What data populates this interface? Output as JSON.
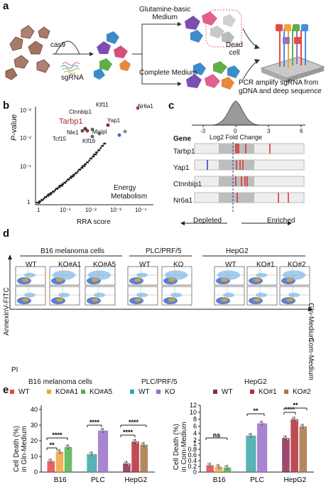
{
  "panel_a": {
    "label": "a",
    "cas9": "cas9",
    "sgrna": "sgRNA",
    "glutamine_medium": "Glutamine-basic\nMedium",
    "complete_medium": "Complete Medium",
    "dead_cell": "Dead\ncell",
    "pcr_text": "PCR amplify sgRNA from\ngDNA and deep sequence"
  },
  "panel_b": {
    "label": "b",
    "ylabel_italic": "P",
    "ylabel_rest": "-value",
    "xlabel": "RRA score",
    "annotation_line1": "Energy",
    "annotation_line2": "Metabolism",
    "highlight_gene": "Tarbp1",
    "genes": [
      "Klf11",
      "Nr6a1",
      "Ctnnbip1",
      "Yap1",
      "Nle1",
      "Mixipl",
      "Tcf15",
      "Klf16"
    ],
    "x_ticks": [
      "1",
      "10⁻¹",
      "10⁻²",
      "10⁻³",
      "10⁻⁴"
    ],
    "y_ticks": [
      "10⁻³",
      "10⁻²",
      "10⁻¹",
      "1"
    ]
  },
  "panel_c": {
    "label": "c",
    "gene_header": "Gene",
    "genes": [
      "Tarbp1",
      "Yap1",
      "Ctnnbip1",
      "Nr6a1"
    ],
    "x_ticks": [
      "-3",
      "0",
      "3",
      "6"
    ],
    "xlabel": "Log2 Fold Change",
    "depleted": "Depleted",
    "enriched": "Enriched"
  },
  "panel_d": {
    "label": "d",
    "groups": [
      "B16 melanoma cells",
      "PLC/PRF/5",
      "HepG2"
    ],
    "columns": [
      "WT",
      "KO#A1",
      "KO#A5",
      "WT",
      "KO",
      "WT",
      "KO#1",
      "KO#2"
    ],
    "row_labels": [
      "Gln-Medium",
      "Com-Medium"
    ],
    "ylabel": "AnnexinV-FITC",
    "xlabel": "PI"
  },
  "panel_e": {
    "label": "e",
    "legend_groups": [
      {
        "title": "B16 melanoma cells",
        "items": [
          {
            "name": "WT",
            "color": "#e8434c"
          },
          {
            "name": "KO#A1",
            "color": "#f0a43a"
          },
          {
            "name": "KO#A5",
            "color": "#53b04c"
          }
        ]
      },
      {
        "title": "PLC/PRF/5",
        "items": [
          {
            "name": "WT",
            "color": "#3aa6a8"
          },
          {
            "name": "KO",
            "color": "#9a6fc8"
          }
        ]
      },
      {
        "title": "HepG2",
        "items": [
          {
            "name": "WT",
            "color": "#8a2a55"
          },
          {
            "name": "KO#1",
            "color": "#b32d3a"
          },
          {
            "name": "KO#2",
            "color": "#a87443"
          }
        ]
      }
    ],
    "ylabel_left": "Cell Death (%)\nin Gln-Medium",
    "ylabel_right": "Cell Death (%)\nin Com-Medium",
    "ns": "ns"
  },
  "chart_data": [
    {
      "type": "bar",
      "title": "",
      "ylabel": "Cell Death (%) in Gln-Medium",
      "ylim": [
        0,
        40
      ],
      "y_ticks": [
        0,
        10,
        20,
        30,
        40
      ],
      "categories": [
        "B16",
        "PLC",
        "HepG2"
      ],
      "groups": [
        {
          "category": "B16",
          "bars": [
            {
              "name": "WT",
              "value": 7,
              "color": "#e8434c"
            },
            {
              "name": "KO#A1",
              "value": 13,
              "color": "#f0a43a"
            },
            {
              "name": "KO#A5",
              "value": 16,
              "color": "#53b04c"
            }
          ]
        },
        {
          "category": "PLC",
          "bars": [
            {
              "name": "WT",
              "value": 11.5,
              "color": "#3aa6a8"
            },
            {
              "name": "KO",
              "value": 26.5,
              "color": "#9a6fc8"
            }
          ]
        },
        {
          "category": "HepG2",
          "bars": [
            {
              "name": "WT",
              "value": 5.5,
              "color": "#8a2a55"
            },
            {
              "name": "KO#1",
              "value": 19.5,
              "color": "#b32d3a"
            },
            {
              "name": "KO#2",
              "value": 17.5,
              "color": "#a87443"
            }
          ]
        }
      ],
      "significance": [
        "**",
        "****",
        "****",
        "****",
        "****"
      ]
    },
    {
      "type": "bar",
      "title": "",
      "ylabel": "Cell Death (%) in Com-Medium",
      "y_ticks": [
        0,
        0.2,
        0.4,
        0.6,
        0.8,
        1,
        2,
        4,
        6,
        8,
        10,
        12
      ],
      "categories": [
        "B16",
        "PLC",
        "HepG2"
      ],
      "groups": [
        {
          "category": "B16",
          "bars": [
            {
              "name": "WT",
              "value": 0.24,
              "color": "#e8434c"
            },
            {
              "name": "KO#A1",
              "value": 0.19,
              "color": "#f0a43a"
            },
            {
              "name": "KO#A5",
              "value": 0.16,
              "color": "#53b04c"
            }
          ]
        },
        {
          "category": "PLC",
          "bars": [
            {
              "name": "WT",
              "value": 3.3,
              "color": "#3aa6a8"
            },
            {
              "name": "KO",
              "value": 6.8,
              "color": "#9a6fc8"
            }
          ]
        },
        {
          "category": "HepG2",
          "bars": [
            {
              "name": "WT",
              "value": 2.6,
              "color": "#8a2a55"
            },
            {
              "name": "KO#1",
              "value": 8,
              "color": "#b32d3a"
            },
            {
              "name": "KO#2",
              "value": 5.9,
              "color": "#a87443"
            }
          ]
        }
      ],
      "significance": [
        "ns",
        "**",
        "****",
        "**"
      ]
    }
  ]
}
